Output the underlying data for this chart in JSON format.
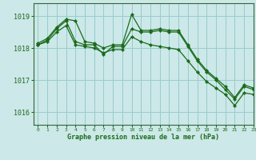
{
  "background_color": "#cce8e8",
  "grid_color": "#99cccc",
  "line_color": "#1a6b1a",
  "marker_color": "#1a6b1a",
  "xlabel": "Graphe pression niveau de la mer (hPa)",
  "xlim": [
    -0.5,
    23
  ],
  "ylim": [
    1015.6,
    1019.4
  ],
  "yticks": [
    1016,
    1017,
    1018,
    1019
  ],
  "xticks": [
    0,
    1,
    2,
    3,
    4,
    5,
    6,
    7,
    8,
    9,
    10,
    11,
    12,
    13,
    14,
    15,
    16,
    17,
    18,
    19,
    20,
    21,
    22,
    23
  ],
  "series1_x": [
    0,
    1,
    2,
    3,
    4,
    5,
    6,
    7,
    8,
    9,
    10,
    11,
    12,
    13,
    14,
    15,
    16,
    17,
    18,
    19,
    20,
    21,
    22,
    23
  ],
  "series1_y": [
    1018.15,
    1018.3,
    1018.65,
    1018.9,
    1018.85,
    1018.2,
    1018.15,
    1018.0,
    1018.1,
    1018.1,
    1019.05,
    1018.55,
    1018.55,
    1018.6,
    1018.55,
    1018.55,
    1018.1,
    1017.65,
    1017.3,
    1017.05,
    1016.8,
    1016.45,
    1016.85,
    1016.75
  ],
  "series2_x": [
    0,
    1,
    2,
    3,
    4,
    5,
    6,
    7,
    8,
    9,
    10,
    11,
    12,
    13,
    14,
    15,
    16,
    17,
    18,
    19,
    20,
    21,
    22,
    23
  ],
  "series2_y": [
    1018.1,
    1018.25,
    1018.6,
    1018.85,
    1018.2,
    1018.1,
    1018.1,
    1017.8,
    1018.05,
    1018.05,
    1018.6,
    1018.5,
    1018.5,
    1018.55,
    1018.5,
    1018.5,
    1018.05,
    1017.6,
    1017.25,
    1017.0,
    1016.7,
    1016.4,
    1016.8,
    1016.7
  ],
  "series3_x": [
    0,
    1,
    2,
    3,
    4,
    5,
    6,
    7,
    8,
    9,
    10,
    11,
    12,
    13,
    14,
    15,
    16,
    17,
    18,
    19,
    20,
    21,
    22,
    23
  ],
  "series3_y": [
    1018.1,
    1018.2,
    1018.5,
    1018.7,
    1018.1,
    1018.05,
    1018.0,
    1017.85,
    1017.95,
    1017.95,
    1018.35,
    1018.2,
    1018.1,
    1018.05,
    1018.0,
    1017.95,
    1017.6,
    1017.25,
    1016.95,
    1016.75,
    1016.55,
    1016.2,
    1016.6,
    1016.55
  ]
}
